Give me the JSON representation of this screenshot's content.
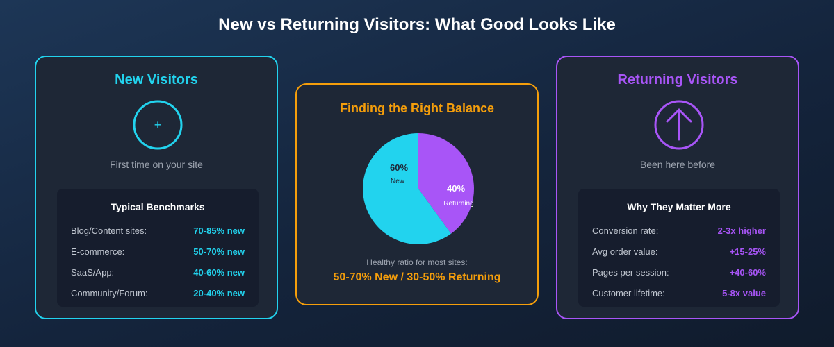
{
  "title": "New vs Returning Visitors: What Good Looks Like",
  "new_card": {
    "title": "New Visitors",
    "icon": "plus-icon",
    "icon_glyph": "+",
    "subtitle": "First time on your site",
    "box_title": "Typical Benchmarks",
    "rows": [
      {
        "label": "Blog/Content sites:",
        "value": "70-85% new"
      },
      {
        "label": "E-commerce:",
        "value": "50-70% new"
      },
      {
        "label": "SaaS/App:",
        "value": "40-60% new"
      },
      {
        "label": "Community/Forum:",
        "value": "20-40% new"
      }
    ],
    "accent": "#22d3ee"
  },
  "balance_card": {
    "title": "Finding the Right Balance",
    "caption": "Healthy ratio for most sites:",
    "ratio": "50-70% New / 30-50% Returning",
    "accent": "#f59e0b"
  },
  "returning_card": {
    "title": "Returning Visitors",
    "icon": "arrow-up-icon",
    "subtitle": "Been here before",
    "box_title": "Why They Matter More",
    "rows": [
      {
        "label": "Conversion rate:",
        "value": "2-3x higher"
      },
      {
        "label": "Avg order value:",
        "value": "+15-25%"
      },
      {
        "label": "Pages per session:",
        "value": "+40-60%"
      },
      {
        "label": "Customer lifetime:",
        "value": "5-8x value"
      }
    ],
    "accent": "#a855f7"
  },
  "chart_data": {
    "type": "pie",
    "slices": [
      {
        "label": "New",
        "value": 60,
        "display": "60%",
        "color": "#22d3ee"
      },
      {
        "label": "Returning",
        "value": 40,
        "display": "40%",
        "color": "#a855f7"
      }
    ]
  }
}
